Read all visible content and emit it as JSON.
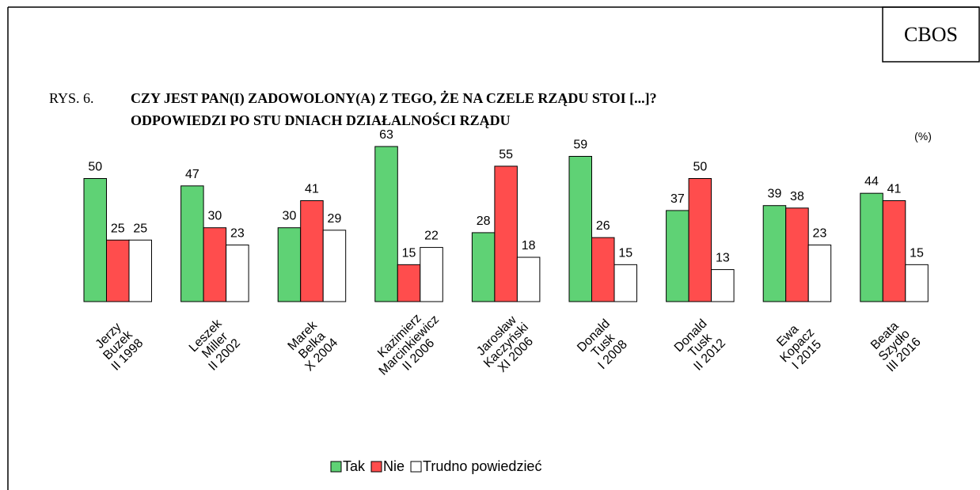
{
  "chart_data": {
    "type": "bar",
    "source": "CBOS",
    "figure_label": "RYS. 6.",
    "title": [
      "CZY JEST PAN(I) ZADOWOLONY(A) Z TEGO, ŻE NA CZELE RZĄDU STOI [...]?",
      "ODPOWIEDZI PO STU DNIACH DZIAŁALNOŚCI RZĄDU"
    ],
    "unit_label": "(%)",
    "categories": [
      [
        "Jerzy",
        "Buzek",
        "II 1998"
      ],
      [
        "Leszek",
        "Miller",
        "II 2002"
      ],
      [
        "Marek",
        "Belka",
        "X 2004"
      ],
      [
        "Kazimierz",
        "Marcinkiewicz",
        "II 2006"
      ],
      [
        "Jarosław",
        "Kaczyński",
        "XI 2006"
      ],
      [
        "Donald",
        "Tusk",
        "I 2008"
      ],
      [
        "Donald",
        "Tusk",
        "II 2012"
      ],
      [
        "Ewa",
        "Kopacz",
        "I 2015"
      ],
      [
        "Beata",
        "Szydło",
        "III 2016"
      ]
    ],
    "series": [
      {
        "name": "Tak",
        "color": "#5fd275",
        "values": [
          50,
          47,
          30,
          63,
          28,
          59,
          37,
          39,
          44
        ]
      },
      {
        "name": "Nie",
        "color": "#ff4d4d",
        "values": [
          25,
          30,
          41,
          15,
          55,
          26,
          50,
          38,
          41
        ]
      },
      {
        "name": "Trudno powiedzieć",
        "color": "#ffffff",
        "values": [
          25,
          23,
          29,
          22,
          18,
          15,
          13,
          23,
          15
        ]
      }
    ]
  }
}
